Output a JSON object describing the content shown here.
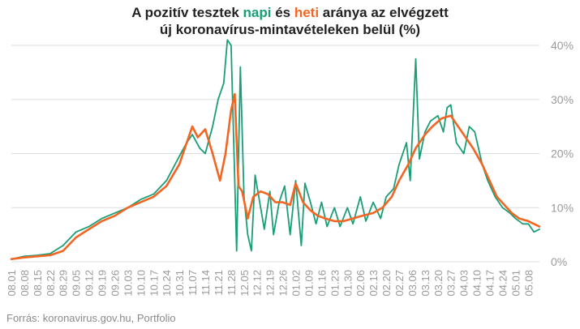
{
  "title": {
    "line1_pre": "A pozitív tesztek ",
    "line1_napi": "napi",
    "line1_mid": " és ",
    "line1_heti": "heti",
    "line1_post": " aránya az elvégzett",
    "line2": "új koronavírus-mintavételeken belül (%)"
  },
  "source": "Forrás: koronavirus.gov.hu, Portfolio",
  "colors": {
    "napi": "#1a9e77",
    "heti": "#f26522",
    "grid": "#dddddd",
    "axis_text": "#9a9a9a",
    "title": "#222222"
  },
  "chart_data": {
    "type": "line",
    "title": "A pozitív tesztek napi és heti aránya az elvégzett új koronavírus-mintavételeken belül (%)",
    "x_start": "2020-08-01",
    "x_end": "2021-05-14",
    "x_tick_labels": [
      "08.01",
      "08.08",
      "08.15",
      "08.22",
      "08.29",
      "09.05",
      "09.12",
      "09.19",
      "09.26",
      "10.03",
      "10.10",
      "10.17",
      "10.24",
      "10.31",
      "11.07",
      "11.14",
      "11.21",
      "11.28",
      "12.05",
      "12.12",
      "12.19",
      "12.26",
      "01.02",
      "01.09",
      "01.16",
      "01.23",
      "01.30",
      "02.06",
      "02.13",
      "02.20",
      "02.27",
      "03.06",
      "03.13",
      "03.20",
      "03.27",
      "04.03",
      "04.10",
      "04.17",
      "04.24",
      "05.01",
      "05.08"
    ],
    "y_ticks": [
      "0%",
      "10%",
      "20%",
      "30%",
      "40%"
    ],
    "ylim": [
      0,
      40
    ],
    "y_axis_side": "right",
    "grid": true,
    "series": [
      {
        "name": "napi",
        "color": "#1a9e77",
        "points": [
          [
            "2020-08-01",
            0.5
          ],
          [
            "2020-08-08",
            1.0
          ],
          [
            "2020-08-15",
            1.2
          ],
          [
            "2020-08-22",
            1.5
          ],
          [
            "2020-08-29",
            3.0
          ],
          [
            "2020-09-05",
            5.5
          ],
          [
            "2020-09-12",
            6.5
          ],
          [
            "2020-09-19",
            8.0
          ],
          [
            "2020-09-26",
            9.0
          ],
          [
            "2020-10-03",
            10.0
          ],
          [
            "2020-10-10",
            11.5
          ],
          [
            "2020-10-17",
            12.5
          ],
          [
            "2020-10-24",
            15.0
          ],
          [
            "2020-10-31",
            19.5
          ],
          [
            "2020-11-04",
            22.0
          ],
          [
            "2020-11-07",
            23.5
          ],
          [
            "2020-11-11",
            21.0
          ],
          [
            "2020-11-14",
            20.0
          ],
          [
            "2020-11-18",
            25.0
          ],
          [
            "2020-11-21",
            30.0
          ],
          [
            "2020-11-24",
            33.0
          ],
          [
            "2020-11-26",
            41.0
          ],
          [
            "2020-11-28",
            40.0
          ],
          [
            "2020-11-30",
            15.0
          ],
          [
            "2020-12-01",
            2.0
          ],
          [
            "2020-12-03",
            36.0
          ],
          [
            "2020-12-05",
            12.0
          ],
          [
            "2020-12-07",
            5.0
          ],
          [
            "2020-12-09",
            2.0
          ],
          [
            "2020-12-11",
            16.0
          ],
          [
            "2020-12-14",
            10.0
          ],
          [
            "2020-12-16",
            6.0
          ],
          [
            "2020-12-19",
            13.0
          ],
          [
            "2020-12-21",
            5.0
          ],
          [
            "2020-12-24",
            11.0
          ],
          [
            "2020-12-27",
            14.0
          ],
          [
            "2020-12-30",
            5.0
          ],
          [
            "2021-01-02",
            15.0
          ],
          [
            "2021-01-05",
            3.0
          ],
          [
            "2021-01-07",
            14.5
          ],
          [
            "2021-01-10",
            11.0
          ],
          [
            "2021-01-13",
            7.0
          ],
          [
            "2021-01-16",
            11.0
          ],
          [
            "2021-01-19",
            6.5
          ],
          [
            "2021-01-23",
            10.0
          ],
          [
            "2021-01-26",
            6.5
          ],
          [
            "2021-01-30",
            10.0
          ],
          [
            "2021-02-02",
            7.0
          ],
          [
            "2021-02-06",
            12.0
          ],
          [
            "2021-02-09",
            7.5
          ],
          [
            "2021-02-13",
            11.0
          ],
          [
            "2021-02-17",
            8.0
          ],
          [
            "2021-02-20",
            12.0
          ],
          [
            "2021-02-24",
            13.5
          ],
          [
            "2021-02-27",
            18.0
          ],
          [
            "2021-03-03",
            22.0
          ],
          [
            "2021-03-05",
            15.0
          ],
          [
            "2021-03-08",
            37.5
          ],
          [
            "2021-03-10",
            19.0
          ],
          [
            "2021-03-13",
            24.0
          ],
          [
            "2021-03-16",
            26.0
          ],
          [
            "2021-03-20",
            27.0
          ],
          [
            "2021-03-23",
            24.0
          ],
          [
            "2021-03-25",
            28.5
          ],
          [
            "2021-03-27",
            29.0
          ],
          [
            "2021-03-30",
            22.0
          ],
          [
            "2021-04-03",
            20.0
          ],
          [
            "2021-04-06",
            25.0
          ],
          [
            "2021-04-09",
            24.0
          ],
          [
            "2021-04-13",
            18.0
          ],
          [
            "2021-04-16",
            15.0
          ],
          [
            "2021-04-20",
            12.0
          ],
          [
            "2021-04-24",
            10.0
          ],
          [
            "2021-04-28",
            9.0
          ],
          [
            "2021-05-01",
            8.0
          ],
          [
            "2021-05-05",
            7.0
          ],
          [
            "2021-05-08",
            7.0
          ],
          [
            "2021-05-11",
            5.5
          ],
          [
            "2021-05-14",
            6.0
          ]
        ]
      },
      {
        "name": "heti",
        "color": "#f26522",
        "points": [
          [
            "2020-08-01",
            0.5
          ],
          [
            "2020-08-08",
            0.8
          ],
          [
            "2020-08-15",
            1.0
          ],
          [
            "2020-08-22",
            1.2
          ],
          [
            "2020-08-29",
            2.0
          ],
          [
            "2020-09-05",
            4.5
          ],
          [
            "2020-09-12",
            6.0
          ],
          [
            "2020-09-19",
            7.5
          ],
          [
            "2020-09-26",
            8.5
          ],
          [
            "2020-10-03",
            10.0
          ],
          [
            "2020-10-10",
            11.0
          ],
          [
            "2020-10-17",
            12.0
          ],
          [
            "2020-10-24",
            14.0
          ],
          [
            "2020-10-31",
            18.0
          ],
          [
            "2020-11-04",
            22.0
          ],
          [
            "2020-11-07",
            25.0
          ],
          [
            "2020-11-10",
            23.0
          ],
          [
            "2020-11-14",
            24.5
          ],
          [
            "2020-11-18",
            20.0
          ],
          [
            "2020-11-22",
            15.0
          ],
          [
            "2020-11-25",
            20.0
          ],
          [
            "2020-11-28",
            28.0
          ],
          [
            "2020-11-30",
            31.0
          ],
          [
            "2020-12-02",
            14.0
          ],
          [
            "2020-12-04",
            13.0
          ],
          [
            "2020-12-07",
            8.0
          ],
          [
            "2020-12-10",
            12.0
          ],
          [
            "2020-12-14",
            13.0
          ],
          [
            "2020-12-18",
            12.5
          ],
          [
            "2020-12-22",
            11.0
          ],
          [
            "2020-12-26",
            11.0
          ],
          [
            "2020-12-30",
            10.5
          ],
          [
            "2021-01-02",
            14.5
          ],
          [
            "2021-01-06",
            11.0
          ],
          [
            "2021-01-10",
            9.5
          ],
          [
            "2021-01-14",
            8.5
          ],
          [
            "2021-01-18",
            8.0
          ],
          [
            "2021-01-23",
            7.5
          ],
          [
            "2021-01-28",
            7.5
          ],
          [
            "2021-02-02",
            8.0
          ],
          [
            "2021-02-07",
            8.5
          ],
          [
            "2021-02-13",
            9.0
          ],
          [
            "2021-02-18",
            10.0
          ],
          [
            "2021-02-23",
            12.0
          ],
          [
            "2021-02-27",
            15.0
          ],
          [
            "2021-03-04",
            18.0
          ],
          [
            "2021-03-08",
            21.0
          ],
          [
            "2021-03-13",
            23.5
          ],
          [
            "2021-03-17",
            25.0
          ],
          [
            "2021-03-22",
            26.5
          ],
          [
            "2021-03-27",
            27.0
          ],
          [
            "2021-03-31",
            25.0
          ],
          [
            "2021-04-04",
            23.0
          ],
          [
            "2021-04-08",
            21.0
          ],
          [
            "2021-04-13",
            18.0
          ],
          [
            "2021-04-17",
            15.0
          ],
          [
            "2021-04-21",
            12.0
          ],
          [
            "2021-04-25",
            10.5
          ],
          [
            "2021-04-29",
            9.0
          ],
          [
            "2021-05-03",
            8.0
          ],
          [
            "2021-05-08",
            7.5
          ],
          [
            "2021-05-14",
            6.5
          ]
        ]
      }
    ]
  }
}
